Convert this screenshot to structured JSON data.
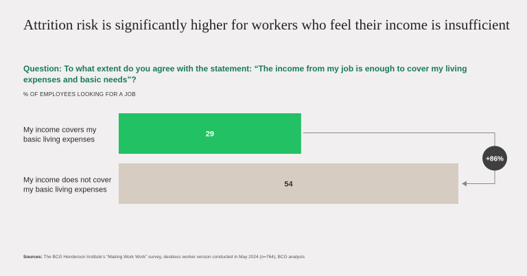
{
  "title": "Attrition risk is significantly higher for workers who feel their income is insufficient",
  "question": "Question: To what extent do you agree with the statement: “The income from my job is enough to cover my living expenses and basic needs”?",
  "measure_label": "% OF EMPLOYEES LOOKING FOR A JOB",
  "sources": {
    "label": "Sources:",
    "text": "The BCG Henderson Institute’s “Making Work Work” survey, deskless worker version conducted in May 2024 (n=764); BCG analysis"
  },
  "colors": {
    "bar_1": "#22c163",
    "bar_2": "#d6ccc1",
    "badge": "#3f3f3f",
    "connector": "#8a8a8a"
  },
  "chart_data": {
    "type": "bar",
    "orientation": "horizontal",
    "categories": [
      "My income covers my basic living expenses",
      "My income does not cover my basic living expenses"
    ],
    "category_lines": [
      [
        "My income covers my",
        "basic living expenses"
      ],
      [
        "My income does not cover",
        "my basic living expenses"
      ]
    ],
    "values": [
      29,
      54
    ],
    "value_labels": [
      "29",
      "54"
    ],
    "annotation": "+86%",
    "grid": false
  }
}
